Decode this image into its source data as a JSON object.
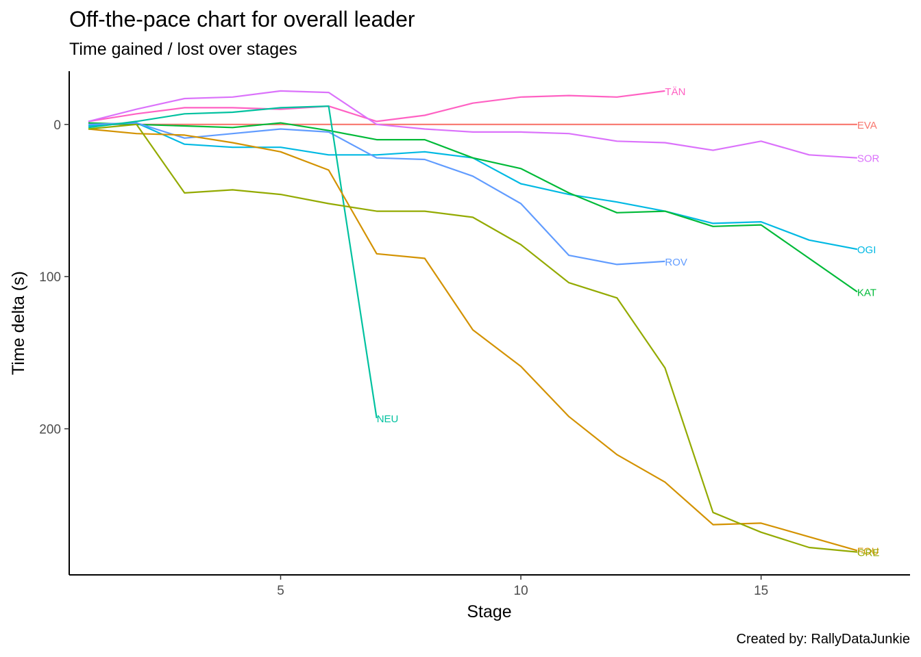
{
  "title": "Off-the-pace chart for overall leader",
  "subtitle": "Time gained / lost over stages",
  "caption": "Created by: RallyDataJunkie",
  "chart_data": {
    "type": "line",
    "xlabel": "Stage",
    "ylabel": "Time delta (s)",
    "xlim": [
      0.6,
      18.1
    ],
    "ylim": [
      -35,
      296
    ],
    "y_reversed": true,
    "x_ticks": [
      5,
      10,
      15
    ],
    "y_ticks": [
      0,
      100,
      200
    ],
    "grid": false,
    "legend": "none",
    "series": [
      {
        "name": "EVA",
        "color": "#F8766D",
        "x": [
          1,
          2,
          3,
          4,
          5,
          6,
          7,
          8,
          9,
          10,
          11,
          12,
          13,
          14,
          15,
          16,
          17
        ],
        "y": [
          0,
          0,
          0,
          0,
          0,
          0,
          0,
          0,
          0,
          0,
          0,
          0,
          0,
          0,
          0,
          0,
          0
        ]
      },
      {
        "name": "TÄN",
        "color": "#FF61C3",
        "x": [
          1,
          2,
          3,
          4,
          5,
          6,
          7,
          8,
          9,
          10,
          11,
          12,
          13
        ],
        "y": [
          -2,
          -7,
          -11,
          -11,
          -10,
          -12,
          -2,
          -6,
          -14,
          -18,
          -19,
          -18,
          -22
        ]
      },
      {
        "name": "SOR",
        "color": "#DB72FB",
        "x": [
          1,
          2,
          3,
          4,
          5,
          6,
          7,
          8,
          9,
          10,
          11,
          12,
          13,
          14,
          15,
          16,
          17
        ],
        "y": [
          -2,
          -10,
          -17,
          -18,
          -22,
          -21,
          0,
          3,
          5,
          5,
          6,
          11,
          12,
          17,
          11,
          20,
          22
        ]
      },
      {
        "name": "OGI",
        "color": "#00B9E3",
        "x": [
          1,
          2,
          3,
          4,
          5,
          6,
          7,
          8,
          9,
          10,
          11,
          12,
          13,
          14,
          15,
          16,
          17
        ],
        "y": [
          1,
          -1,
          13,
          15,
          15,
          20,
          20,
          18,
          22,
          39,
          46,
          51,
          57,
          65,
          64,
          76,
          82
        ]
      },
      {
        "name": "KAT",
        "color": "#00BA38",
        "x": [
          1,
          2,
          3,
          4,
          5,
          6,
          7,
          8,
          9,
          10,
          11,
          12,
          13,
          14,
          15,
          16,
          17
        ],
        "y": [
          -1,
          0,
          1,
          2,
          -1,
          4,
          10,
          10,
          22,
          29,
          45,
          58,
          57,
          67,
          66,
          88,
          110
        ]
      },
      {
        "name": "ROV",
        "color": "#619CFF",
        "x": [
          1,
          2,
          3,
          4,
          5,
          6,
          7,
          8,
          9,
          10,
          11,
          12,
          13
        ],
        "y": [
          0,
          -1,
          9,
          6,
          3,
          5,
          22,
          23,
          34,
          52,
          86,
          92,
          90
        ]
      },
      {
        "name": "NEU",
        "color": "#00C19F",
        "x": [
          1,
          2,
          3,
          4,
          5,
          6,
          7
        ],
        "y": [
          2,
          -2,
          -7,
          -8,
          -11,
          -12,
          193
        ]
      },
      {
        "name": "FOU",
        "color": "#D39200",
        "x": [
          1,
          2,
          3,
          4,
          5,
          6,
          7,
          8,
          9,
          10,
          11,
          12,
          13,
          14,
          15,
          16,
          17
        ],
        "y": [
          3,
          6,
          7,
          12,
          18,
          30,
          85,
          88,
          135,
          159,
          192,
          217,
          235,
          263,
          262,
          271,
          280
        ]
      },
      {
        "name": "GRE",
        "color": "#93AA00",
        "x": [
          1,
          2,
          3,
          4,
          5,
          6,
          7,
          8,
          9,
          10,
          11,
          12,
          13,
          14,
          15,
          16,
          17
        ],
        "y": [
          3,
          0,
          45,
          43,
          46,
          52,
          57,
          57,
          61,
          79,
          104,
          114,
          160,
          255,
          268,
          278,
          281
        ]
      }
    ]
  }
}
